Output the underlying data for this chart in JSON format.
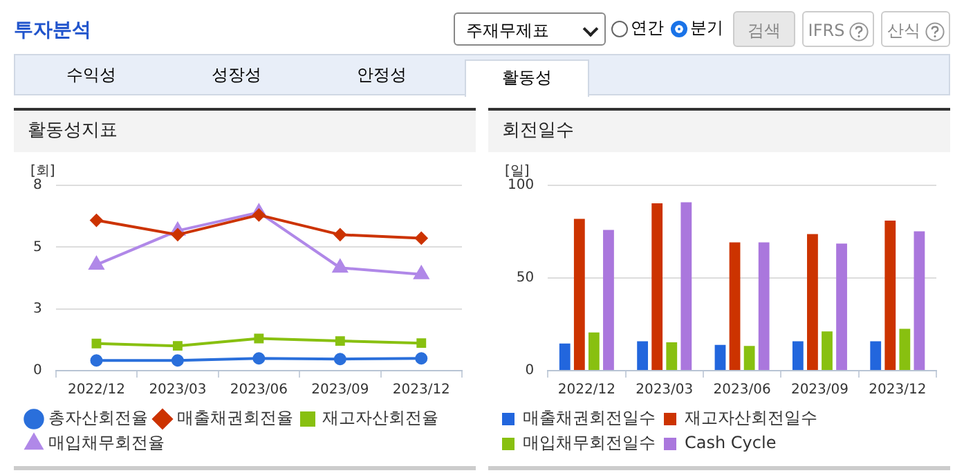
{
  "chart_data": [
    {
      "type": "other",
      "annotations": [
        "투자분석",
        "주재무제표",
        "연간",
        "분기",
        "검색",
        "IFRS",
        "산식",
        "수익성",
        "성장성",
        "안정성",
        "활동성"
      ]
    },
    {
      "type": "line",
      "title": "활동성지표",
      "ylabel": "[회]",
      "categories": [
        "2022/12",
        "2023/03",
        "2023/06",
        "2023/09",
        "2023/12"
      ],
      "ylim": [
        0,
        8
      ],
      "yticks": [
        0,
        {
          "value": 2.667,
          "label": "3"
        },
        {
          "value": 5.333,
          "label": "5"
        },
        8
      ],
      "grid": "y",
      "legend": "bottom",
      "series": [
        {
          "name": "총자산회전율",
          "color": "#2a6fdb",
          "marker": "circle",
          "values": [
            0.44,
            0.44,
            0.53,
            0.5,
            0.53
          ]
        },
        {
          "name": "매출채권회전율",
          "color": "#cc3300",
          "marker": "diamond",
          "values": [
            6.49,
            5.87,
            6.72,
            5.87,
            5.72
          ]
        },
        {
          "name": "재고자산회전율",
          "color": "#88c010",
          "marker": "square",
          "values": [
            1.17,
            1.07,
            1.39,
            1.28,
            1.19
          ]
        },
        {
          "name": "매입채무회전율",
          "color": "#b088e8",
          "marker": "triangle",
          "values": [
            4.57,
            6.04,
            6.83,
            4.44,
            4.16
          ]
        }
      ]
    },
    {
      "type": "bar",
      "title": "회전일수",
      "ylabel": "[일]",
      "categories": [
        "2022/12",
        "2023/03",
        "2023/06",
        "2023/09",
        "2023/12"
      ],
      "ylim": [
        0,
        100
      ],
      "yticks": [
        0,
        50,
        100
      ],
      "grid": "y",
      "legend": "bottom",
      "series": [
        {
          "name": "매출채권회전일수",
          "color": "#2266dd",
          "values": [
            14.6,
            15.9,
            13.9,
            15.9,
            15.9
          ]
        },
        {
          "name": "재고자산회전일수",
          "color": "#cc3300",
          "values": [
            81.9,
            90.3,
            69.2,
            73.7,
            81
          ]
        },
        {
          "name": "매입채무회전일수",
          "color": "#88c010",
          "values": [
            20.6,
            15.3,
            13.3,
            21.2,
            22.6
          ]
        },
        {
          "name": "Cash Cycle",
          "color": "#aa77dd",
          "values": [
            75.9,
            90.9,
            69.2,
            68.6,
            75.2
          ]
        }
      ]
    }
  ]
}
